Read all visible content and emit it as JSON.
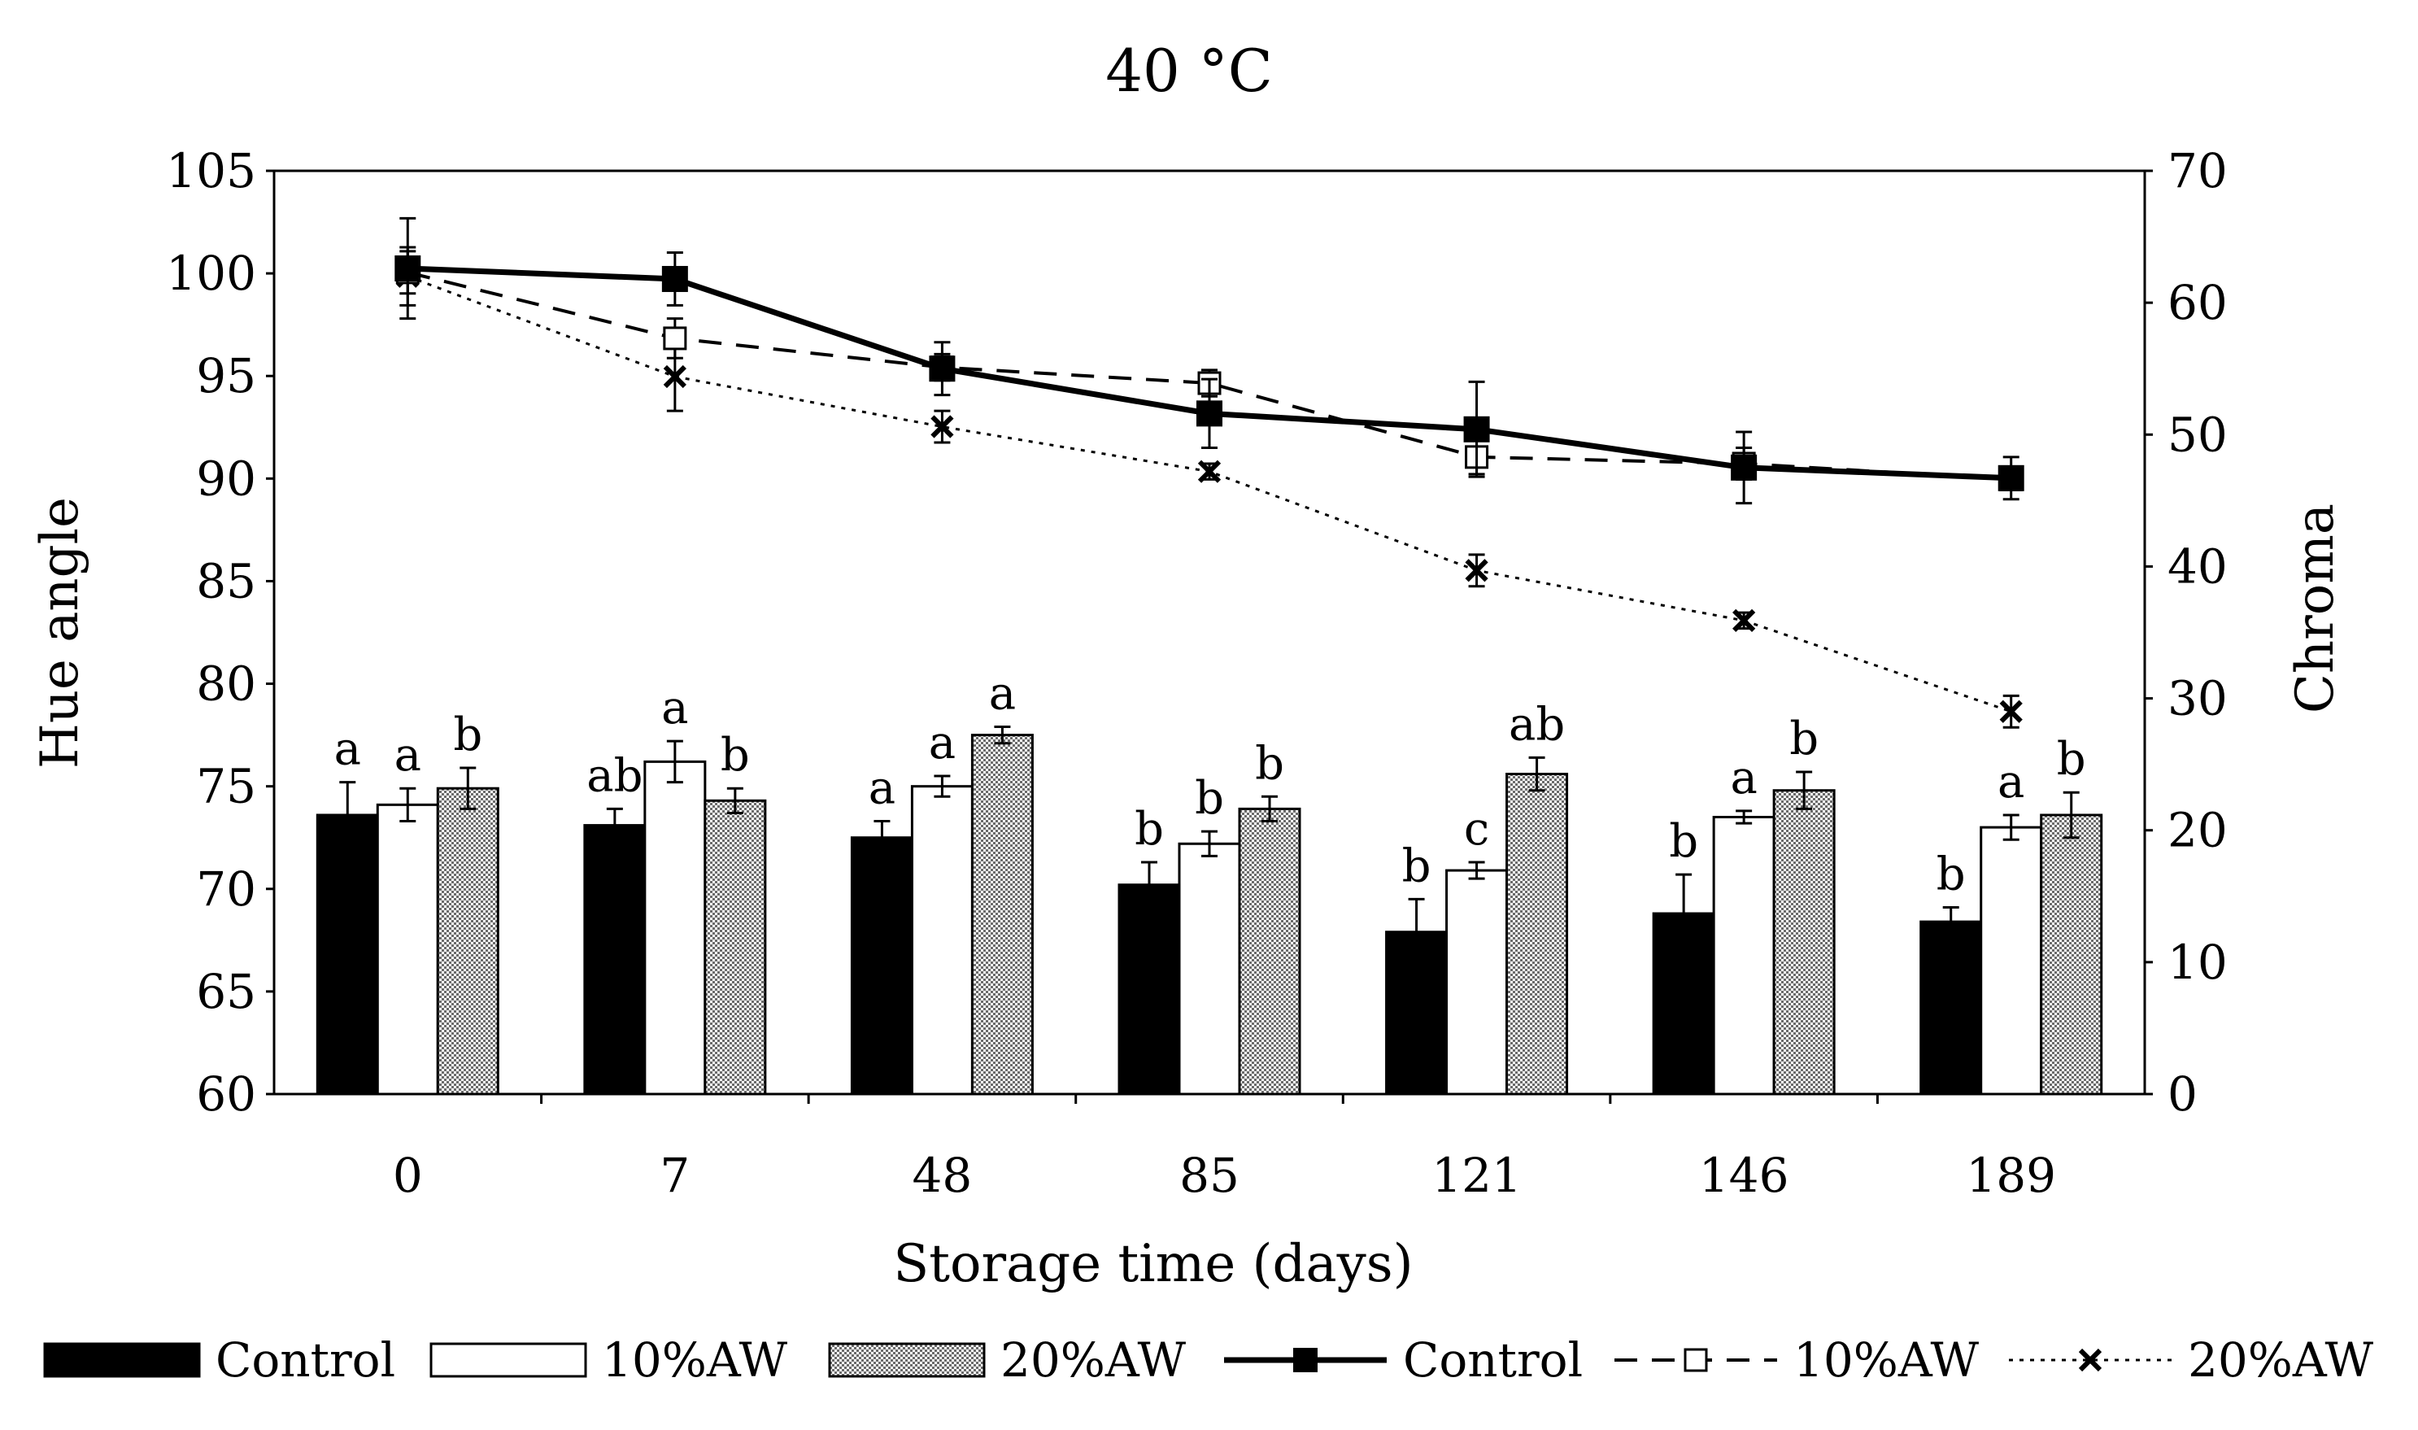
{
  "colors": {
    "control": "#000000",
    "aw10": "#ffffff",
    "aw20": "#9a9a9a",
    "axis": "#000000"
  },
  "chart_data": {
    "type": "bar+line",
    "title": "40 °C",
    "xlabel": "Storage time (days)",
    "ylabel_left": "Hue angle",
    "ylabel_right": "Chroma",
    "ylim_left": [
      60,
      105
    ],
    "yticks_left": [
      60,
      65,
      70,
      75,
      80,
      85,
      90,
      95,
      100,
      105
    ],
    "ylim_right": [
      0,
      70
    ],
    "yticks_right": [
      0,
      10,
      20,
      30,
      40,
      50,
      60,
      70
    ],
    "categories": [
      "0",
      "7",
      "48",
      "85",
      "121",
      "146",
      "189"
    ],
    "bar_series": [
      {
        "name": "Control",
        "axis": "left",
        "values": [
          73.6,
          73.1,
          72.5,
          70.2,
          67.9,
          68.8,
          68.4
        ],
        "errors": [
          1.6,
          0.8,
          0.8,
          1.1,
          1.6,
          1.9,
          0.7
        ],
        "letters": [
          "a",
          "ab",
          "a",
          "b",
          "b",
          "b",
          "b"
        ]
      },
      {
        "name": "10%AW",
        "axis": "left",
        "values": [
          74.1,
          76.2,
          75.0,
          72.2,
          70.9,
          73.5,
          73.0
        ],
        "errors": [
          0.8,
          1.0,
          0.5,
          0.6,
          0.4,
          0.3,
          0.6
        ],
        "letters": [
          "a",
          "a",
          "a",
          "b",
          "c",
          "a",
          "a"
        ]
      },
      {
        "name": "20%AW",
        "axis": "left",
        "values": [
          74.9,
          74.3,
          77.5,
          73.9,
          75.6,
          74.8,
          73.6
        ],
        "errors": [
          1.0,
          0.6,
          0.4,
          0.6,
          0.8,
          0.9,
          1.1
        ],
        "letters": [
          "b",
          "b",
          "a",
          "b",
          "ab",
          "b",
          "b"
        ]
      }
    ],
    "line_series": [
      {
        "name": "Control",
        "axis": "right",
        "values": [
          62.6,
          61.8,
          55.0,
          51.6,
          50.4,
          47.5,
          46.7
        ],
        "errors": [
          3.8,
          2.0,
          2.0,
          2.6,
          3.6,
          2.7,
          1.6
        ]
      },
      {
        "name": "10%AW",
        "axis": "right",
        "values": [
          62.3,
          57.3,
          55.1,
          53.9,
          48.3,
          47.8,
          46.6
        ],
        "errors": [
          1.6,
          1.5,
          1.0,
          1.0,
          1.3,
          1.2,
          0.6
        ]
      },
      {
        "name": "20%AW",
        "axis": "right",
        "values": [
          62.0,
          54.4,
          50.6,
          47.2,
          39.7,
          35.9,
          29.0
        ],
        "errors": [
          2.2,
          2.6,
          1.2,
          0.6,
          1.2,
          0.6,
          1.2
        ]
      }
    ],
    "legend": [
      {
        "label": "Control",
        "kind": "bar",
        "series": 0
      },
      {
        "label": "10%AW",
        "kind": "bar",
        "series": 1
      },
      {
        "label": "20%AW",
        "kind": "bar",
        "series": 2
      },
      {
        "label": "Control",
        "kind": "line",
        "series": 0
      },
      {
        "label": "10%AW",
        "kind": "line",
        "series": 1
      },
      {
        "label": "20%AW",
        "kind": "line",
        "series": 2
      }
    ],
    "legend_position": "bottom"
  }
}
